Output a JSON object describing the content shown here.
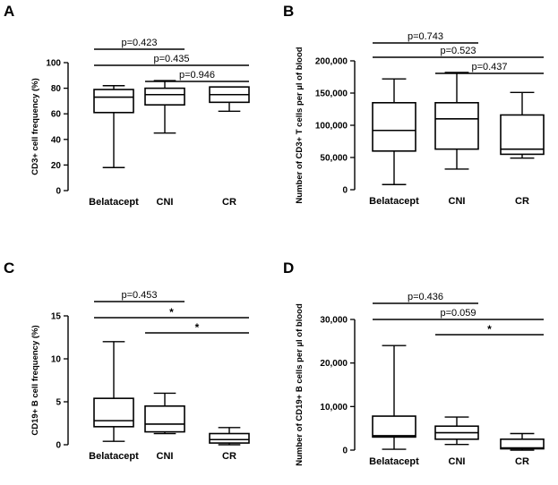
{
  "chart_data": [
    {
      "type": "box",
      "panel_label": "A",
      "ylabel": "CD3+ cell frequency (%)",
      "ylim": [
        0,
        100
      ],
      "yticks": [
        "0",
        "20",
        "40",
        "60",
        "80",
        "100"
      ],
      "categories": [
        "Belatacept",
        "CNI",
        "CR"
      ],
      "boxes": [
        {
          "min": 18,
          "q1": 61,
          "median": 73,
          "q3": 79,
          "max": 82
        },
        {
          "min": 45,
          "q1": 67,
          "median": 75,
          "q3": 80,
          "max": 86
        },
        {
          "min": 62,
          "q1": 69,
          "median": 75,
          "q3": 81,
          "max": 81
        }
      ],
      "comparisons": [
        {
          "from": 0,
          "to": 1,
          "label": "p=0.423"
        },
        {
          "from": 0,
          "to": 2,
          "label": "p=0.435"
        },
        {
          "from": 1,
          "to": 2,
          "label": "p=0.946"
        }
      ]
    },
    {
      "type": "box",
      "panel_label": "B",
      "ylabel": "Number of CD3+ T cells per µl of blood",
      "ylim": [
        0,
        200000
      ],
      "yticks": [
        "0",
        "50,000",
        "100,000",
        "150,000",
        "200,000"
      ],
      "categories": [
        "Belatacept",
        "CNI",
        "CR"
      ],
      "boxes": [
        {
          "min": 8000,
          "q1": 60000,
          "median": 92000,
          "q3": 135000,
          "max": 172000
        },
        {
          "min": 32000,
          "q1": 63000,
          "median": 110000,
          "q3": 135000,
          "max": 182000
        },
        {
          "min": 49000,
          "q1": 55000,
          "median": 63000,
          "q3": 116000,
          "max": 151000
        }
      ],
      "comparisons": [
        {
          "from": 0,
          "to": 1,
          "label": "p=0.743"
        },
        {
          "from": 0,
          "to": 2,
          "label": "p=0.523"
        },
        {
          "from": 1,
          "to": 2,
          "label": "p=0.437"
        }
      ]
    },
    {
      "type": "box",
      "panel_label": "C",
      "ylabel": "CD19+ B cell frequency (%)",
      "ylim": [
        0,
        15
      ],
      "yticks": [
        "0",
        "5",
        "10",
        "15"
      ],
      "categories": [
        "Belatacept",
        "CNI",
        "CR"
      ],
      "boxes": [
        {
          "min": 0.4,
          "q1": 2.1,
          "median": 2.8,
          "q3": 5.4,
          "max": 12.0
        },
        {
          "min": 1.3,
          "q1": 1.5,
          "median": 2.4,
          "q3": 4.5,
          "max": 6.0
        },
        {
          "min": 0.0,
          "q1": 0.2,
          "median": 0.6,
          "q3": 1.3,
          "max": 2.0
        }
      ],
      "comparisons": [
        {
          "from": 0,
          "to": 1,
          "label": "p=0.453"
        },
        {
          "from": 0,
          "to": 2,
          "label": "*"
        },
        {
          "from": 1,
          "to": 2,
          "label": "*"
        }
      ]
    },
    {
      "type": "box",
      "panel_label": "D",
      "ylabel": "Number of CD19+ B cells per µl of blood",
      "ylim": [
        0,
        30000
      ],
      "yticks": [
        "0",
        "10,000",
        "20,000",
        "30,000"
      ],
      "categories": [
        "Belatacept",
        "CNI",
        "CR"
      ],
      "boxes": [
        {
          "min": 200,
          "q1": 3000,
          "median": 3300,
          "q3": 7800,
          "max": 24000
        },
        {
          "min": 1300,
          "q1": 2500,
          "median": 4000,
          "q3": 5500,
          "max": 7600
        },
        {
          "min": 0,
          "q1": 300,
          "median": 500,
          "q3": 2500,
          "max": 3800
        }
      ],
      "comparisons": [
        {
          "from": 0,
          "to": 1,
          "label": "p=0.436"
        },
        {
          "from": 0,
          "to": 2,
          "label": "p=0.059"
        },
        {
          "from": 1,
          "to": 2,
          "label": "*"
        }
      ]
    }
  ]
}
